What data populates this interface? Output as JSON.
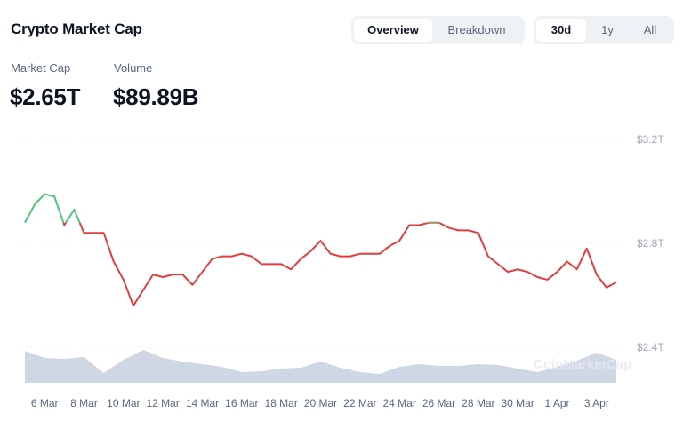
{
  "header": {
    "title": "Crypto Market Cap"
  },
  "view_tabs": [
    {
      "label": "Overview",
      "active": true
    },
    {
      "label": "Breakdown",
      "active": false
    }
  ],
  "range_tabs": [
    {
      "label": "30d",
      "active": true
    },
    {
      "label": "1y",
      "active": false
    },
    {
      "label": "All",
      "active": false
    }
  ],
  "stats": {
    "market_cap_label": "Market Cap",
    "market_cap_value": "$2.65T",
    "volume_label": "Volume",
    "volume_value": "$89.89B"
  },
  "watermark": "CoinMarketCap",
  "colors": {
    "up": "#4fc47d",
    "down": "#e03e3e",
    "volume": "#cfd6e4",
    "grid": "#dfe3ea"
  },
  "chart_data": {
    "type": "line",
    "x_start": "5 Mar",
    "x_end": "4 Apr",
    "x_step": "12h",
    "values": [
      2.88,
      2.95,
      2.99,
      2.98,
      2.87,
      2.93,
      2.84,
      2.84,
      2.84,
      2.73,
      2.66,
      2.56,
      2.62,
      2.68,
      2.67,
      2.68,
      2.68,
      2.64,
      2.69,
      2.74,
      2.75,
      2.75,
      2.76,
      2.75,
      2.72,
      2.72,
      2.72,
      2.7,
      2.74,
      2.77,
      2.81,
      2.76,
      2.75,
      2.75,
      2.76,
      2.76,
      2.76,
      2.79,
      2.81,
      2.87,
      2.87,
      2.88,
      2.88,
      2.86,
      2.85,
      2.85,
      2.84,
      2.75,
      2.72,
      2.69,
      2.7,
      2.69,
      2.67,
      2.66,
      2.69,
      2.73,
      2.7,
      2.78,
      2.68,
      2.63,
      2.65
    ],
    "baseline": 2.88,
    "volume_relative_step": "24h",
    "volume_relative": [
      36,
      28,
      27,
      29,
      11,
      26,
      37,
      28,
      24,
      21,
      18,
      12,
      13,
      16,
      17,
      24,
      17,
      12,
      10,
      18,
      21,
      19,
      19,
      21,
      20,
      16,
      12,
      18,
      25,
      34,
      26
    ],
    "ylim": [
      2.4,
      3.2
    ],
    "y_ticks": [
      "$3.2T",
      "$2.8T",
      "$2.4T"
    ],
    "y_tick_values": [
      3.2,
      2.8,
      2.4
    ],
    "x_ticks": [
      "6 Mar",
      "8 Mar",
      "10 Mar",
      "12 Mar",
      "14 Mar",
      "16 Mar",
      "18 Mar",
      "20 Mar",
      "22 Mar",
      "24 Mar",
      "26 Mar",
      "28 Mar",
      "30 Mar",
      "1 Apr",
      "3 Apr"
    ],
    "x_tick_days": [
      1,
      3,
      5,
      7,
      9,
      11,
      13,
      15,
      17,
      19,
      21,
      23,
      25,
      27,
      29
    ],
    "grid": true,
    "legend": "none"
  }
}
